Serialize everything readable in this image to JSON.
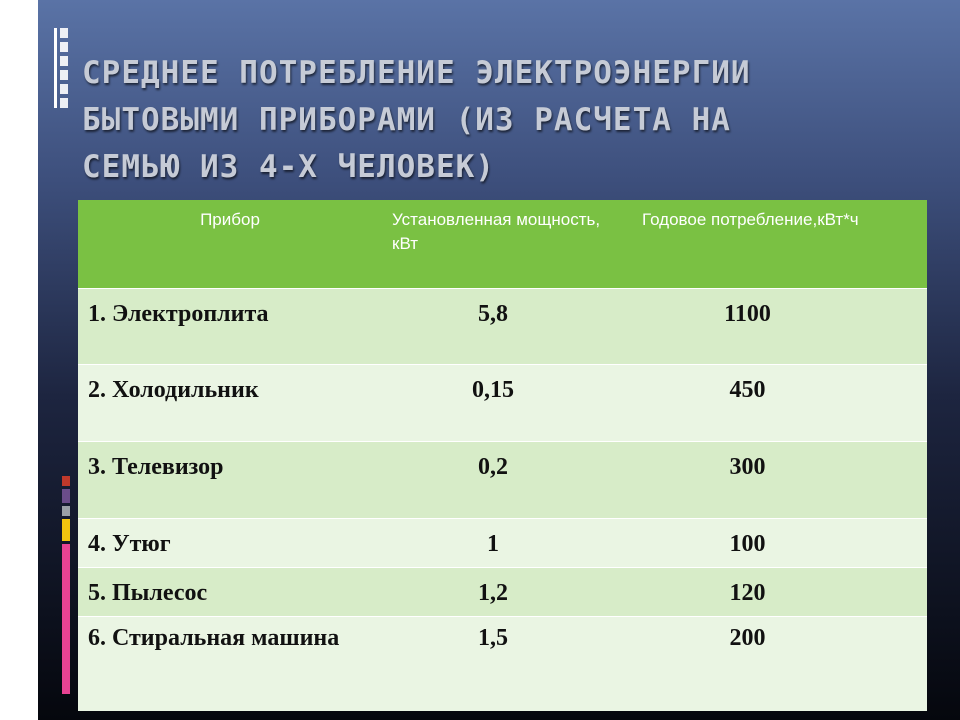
{
  "slide": {
    "title": "СРЕДНЕЕ ПОТРЕБЛЕНИЕ ЭЛЕКТРОЭНЕРГИИ\nБЫТОВЫМИ ПРИБОРАМИ (ИЗ РАСЧЕТА НА\nСЕМЬЮ ИЗ 4-Х ЧЕЛОВЕК)"
  },
  "table": {
    "headers": [
      "Прибор",
      "Установленная мощность, кВт",
      "Годовое потребление,кВт*ч"
    ],
    "rows": [
      [
        "1. Электроплита",
        "5,8",
        "1100"
      ],
      [
        "2. Холодильник",
        "0,15",
        "450"
      ],
      [
        "3. Телевизор",
        "0,2",
        "300"
      ],
      [
        "4. Утюг",
        "1",
        "100"
      ],
      [
        "5. Пылесос",
        "1,2",
        "120"
      ],
      [
        "6. Стиральная машина",
        "1,5",
        "200"
      ]
    ]
  },
  "colors": {
    "header_green": "#7ac143",
    "row_light": "#eaf5e3",
    "row_mid": "#d7ecc8",
    "accent_bars": [
      "#c0392b",
      "#8e44ad",
      "#7f8c8d",
      "#f1c40f",
      "#e84393",
      "#e84393"
    ]
  }
}
